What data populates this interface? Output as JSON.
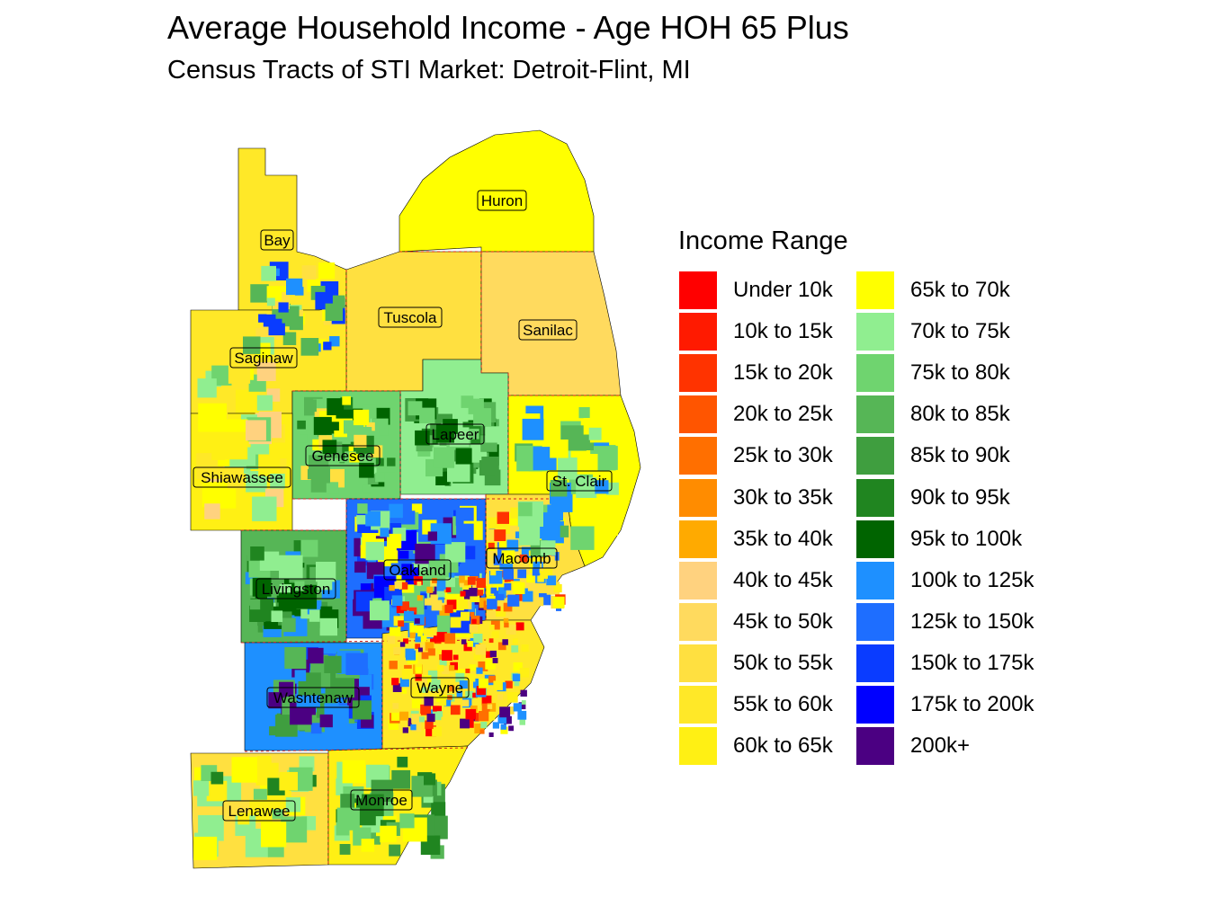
{
  "title": "Average Household Income - Age HOH 65 Plus",
  "subtitle": "Census Tracts of STI Market: Detroit-Flint, MI",
  "legend": {
    "title": "Income Range",
    "items": [
      {
        "label": "Under 10k",
        "color": "#ff0000"
      },
      {
        "label": "10k to 15k",
        "color": "#ff1a00"
      },
      {
        "label": "15k to 20k",
        "color": "#ff3300"
      },
      {
        "label": "20k to 25k",
        "color": "#ff5500"
      },
      {
        "label": "25k to 30k",
        "color": "#ff6f00"
      },
      {
        "label": "30k to 35k",
        "color": "#ff8c00"
      },
      {
        "label": "35k to 40k",
        "color": "#ffaa00"
      },
      {
        "label": "40k to 45k",
        "color": "#ffd27f"
      },
      {
        "label": "45k to 50k",
        "color": "#ffda5e"
      },
      {
        "label": "50k to 55k",
        "color": "#ffe040"
      },
      {
        "label": "55k to 60k",
        "color": "#ffe828"
      },
      {
        "label": "60k to 65k",
        "color": "#fff014"
      },
      {
        "label": "65k to 70k",
        "color": "#ffff00"
      },
      {
        "label": "70k to 75k",
        "color": "#90ee90"
      },
      {
        "label": "75k to 80k",
        "color": "#6fd46f"
      },
      {
        "label": "80k to 85k",
        "color": "#56b656"
      },
      {
        "label": "85k to 90k",
        "color": "#3f9e3f"
      },
      {
        "label": "90k to 95k",
        "color": "#208520"
      },
      {
        "label": "95k to 100k",
        "color": "#006400"
      },
      {
        "label": "100k to 125k",
        "color": "#1e90ff"
      },
      {
        "label": "125k to 150k",
        "color": "#1e6eff"
      },
      {
        "label": "150k to 175k",
        "color": "#0a3cff"
      },
      {
        "label": "175k to 200k",
        "color": "#0000ff"
      },
      {
        "label": "200k+",
        "color": "#4b0082"
      }
    ]
  },
  "counties": [
    {
      "name": "Huron",
      "color": "#ffff00"
    },
    {
      "name": "Bay",
      "color": "#ffe828"
    },
    {
      "name": "Tuscola",
      "color": "#ffe040"
    },
    {
      "name": "Sanilac",
      "color": "#ffda5e"
    },
    {
      "name": "Saginaw",
      "color": "#ffe828"
    },
    {
      "name": "Lapeer",
      "color": "#90ee90"
    },
    {
      "name": "Genesee",
      "color": "#6fd46f"
    },
    {
      "name": "Shiawassee",
      "color": "#fff014"
    },
    {
      "name": "St. Clair",
      "color": "#ffff00"
    },
    {
      "name": "Macomb",
      "color": "#ffe040"
    },
    {
      "name": "Oakland",
      "color": "#1e6eff"
    },
    {
      "name": "Livingston",
      "color": "#56b656"
    },
    {
      "name": "Washtenaw",
      "color": "#1e90ff"
    },
    {
      "name": "Wayne",
      "color": "#ffe828"
    },
    {
      "name": "Lenawee",
      "color": "#ffe040"
    },
    {
      "name": "Monroe",
      "color": "#fff014"
    }
  ]
}
